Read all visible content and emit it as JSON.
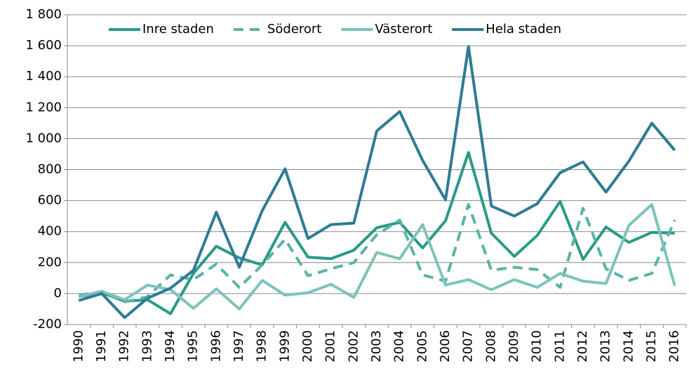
{
  "chart_data": {
    "type": "line",
    "categories": [
      "1990",
      "1991",
      "1992",
      "1993",
      "1994",
      "1995",
      "1996",
      "1997",
      "1998",
      "1999",
      "2000",
      "2001",
      "2002",
      "2003",
      "2004",
      "2005",
      "2006",
      "2007",
      "2008",
      "2009",
      "2010",
      "2011",
      "2012",
      "2013",
      "2014",
      "2015",
      "2016"
    ],
    "series": [
      {
        "name": "Inre staden",
        "color": "#2a9a86",
        "line_style": "solid",
        "values": [
          -20,
          5,
          -50,
          -40,
          -130,
          130,
          305,
          230,
          185,
          460,
          235,
          225,
          280,
          425,
          460,
          295,
          470,
          910,
          390,
          240,
          375,
          595,
          220,
          430,
          330,
          395,
          390
        ]
      },
      {
        "name": "Söderort",
        "color": "#5cb3a4",
        "line_style": "dashed",
        "values": [
          -10,
          10,
          -55,
          -20,
          120,
          90,
          190,
          40,
          185,
          350,
          115,
          160,
          200,
          380,
          475,
          120,
          80,
          575,
          150,
          170,
          155,
          40,
          550,
          160,
          85,
          130,
          475
        ]
      },
      {
        "name": "Västerort",
        "color": "#7dc3ba",
        "line_style": "solid",
        "values": [
          -20,
          15,
          -40,
          55,
          25,
          -95,
          30,
          -100,
          85,
          -10,
          5,
          60,
          -25,
          265,
          225,
          445,
          55,
          90,
          25,
          90,
          40,
          130,
          80,
          65,
          440,
          575,
          50
        ]
      },
      {
        "name": "Hela staden",
        "color": "#2f7b94",
        "line_style": "solid",
        "values": [
          -45,
          0,
          -155,
          -30,
          35,
          150,
          525,
          170,
          535,
          805,
          355,
          445,
          455,
          1050,
          1175,
          860,
          605,
          1595,
          565,
          500,
          580,
          780,
          850,
          655,
          855,
          1100,
          925
        ]
      }
    ],
    "ylim": [
      -200,
      1800
    ],
    "yticks": [
      -200,
      0,
      200,
      400,
      600,
      800,
      {
        "value": 1000,
        "label": "1 000"
      },
      {
        "value": 1200,
        "label": "1 200"
      },
      {
        "value": 1400,
        "label": "1 400"
      },
      {
        "value": 1600,
        "label": "1 600"
      },
      {
        "value": 1800,
        "label": "1 800"
      }
    ],
    "grid": true,
    "legend": "top-right"
  }
}
